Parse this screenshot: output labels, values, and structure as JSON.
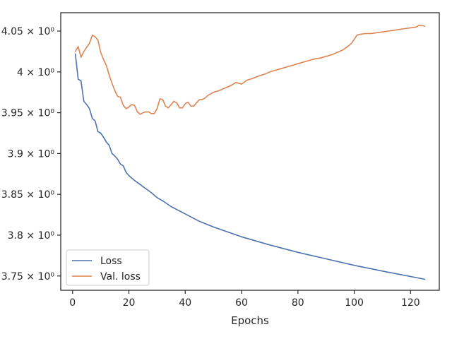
{
  "chart_data": {
    "type": "line",
    "title": "",
    "xlabel": "Epochs",
    "ylabel": "",
    "xlim": [
      -4.2,
      130.2
    ],
    "ylim": [
      3.7325,
      4.0725
    ],
    "grid": false,
    "legend_position": "lower-left",
    "x_ticks": [
      0,
      20,
      40,
      60,
      80,
      100,
      120
    ],
    "x_tick_labels": [
      "0",
      "20",
      "40",
      "60",
      "80",
      "100",
      "120"
    ],
    "y_ticks": [
      3.75,
      3.8,
      3.85,
      3.9,
      3.95,
      4.0,
      4.05
    ],
    "y_tick_labels": [
      "3.75 × 10⁰",
      "3.8 × 10⁰",
      "3.85 × 10⁰",
      "3.9 × 10⁰",
      "3.95 × 10⁰",
      "4 × 10⁰",
      "4.05 × 10⁰"
    ],
    "series": [
      {
        "name": "Loss",
        "color": "#4c72b0",
        "x": [
          1,
          2,
          3,
          4,
          5,
          6,
          7,
          8,
          9,
          10,
          11,
          12,
          13,
          14,
          15,
          16,
          17,
          18,
          19,
          20,
          22,
          24,
          26,
          28,
          30,
          32,
          35,
          40,
          45,
          50,
          60,
          70,
          80,
          90,
          100,
          110,
          125
        ],
        "values": [
          4.022,
          3.991,
          3.989,
          3.964,
          3.96,
          3.955,
          3.943,
          3.94,
          3.927,
          3.925,
          3.92,
          3.914,
          3.91,
          3.9,
          3.897,
          3.893,
          3.887,
          3.885,
          3.877,
          3.873,
          3.867,
          3.862,
          3.857,
          3.852,
          3.846,
          3.842,
          3.835,
          3.826,
          3.817,
          3.81,
          3.798,
          3.788,
          3.779,
          3.771,
          3.763,
          3.756,
          3.746
        ]
      },
      {
        "name": "Val. loss",
        "color": "#dd8452",
        "x": [
          1,
          2,
          3,
          4,
          5,
          6,
          7,
          8,
          9,
          10,
          11,
          12,
          13,
          14,
          15,
          16,
          17,
          18,
          19,
          20,
          21,
          22,
          23,
          24,
          25,
          26,
          27,
          28,
          29,
          30,
          31,
          32,
          33,
          34,
          35,
          36,
          37,
          38,
          39,
          40,
          41,
          42,
          43,
          44,
          45,
          46,
          47,
          48,
          50,
          52,
          54,
          56,
          58,
          60,
          62,
          64,
          66,
          68,
          70,
          72,
          74,
          76,
          78,
          80,
          82,
          84,
          86,
          88,
          90,
          92,
          94,
          96,
          98,
          99,
          100,
          101,
          102,
          104,
          106,
          108,
          110,
          112,
          114,
          116,
          118,
          120,
          122,
          123,
          124,
          125
        ],
        "values": [
          4.025,
          4.031,
          4.018,
          4.025,
          4.03,
          4.035,
          4.045,
          4.043,
          4.039,
          4.024,
          4.015,
          4.008,
          3.996,
          3.986,
          3.977,
          3.97,
          3.969,
          3.959,
          3.955,
          3.957,
          3.96,
          3.959,
          3.951,
          3.948,
          3.95,
          3.951,
          3.951,
          3.949,
          3.949,
          3.955,
          3.967,
          3.966,
          3.958,
          3.956,
          3.96,
          3.964,
          3.962,
          3.956,
          3.956,
          3.961,
          3.963,
          3.958,
          3.958,
          3.962,
          3.966,
          3.966,
          3.968,
          3.971,
          3.975,
          3.977,
          3.98,
          3.983,
          3.987,
          3.985,
          3.99,
          3.992,
          3.995,
          3.997,
          4.0,
          4.002,
          4.004,
          4.006,
          4.008,
          4.01,
          4.012,
          4.014,
          4.016,
          4.017,
          4.019,
          4.021,
          4.024,
          4.027,
          4.032,
          4.035,
          4.04,
          4.045,
          4.046,
          4.047,
          4.047,
          4.048,
          4.049,
          4.05,
          4.051,
          4.052,
          4.053,
          4.054,
          4.055,
          4.057,
          4.057,
          4.056
        ]
      }
    ]
  }
}
